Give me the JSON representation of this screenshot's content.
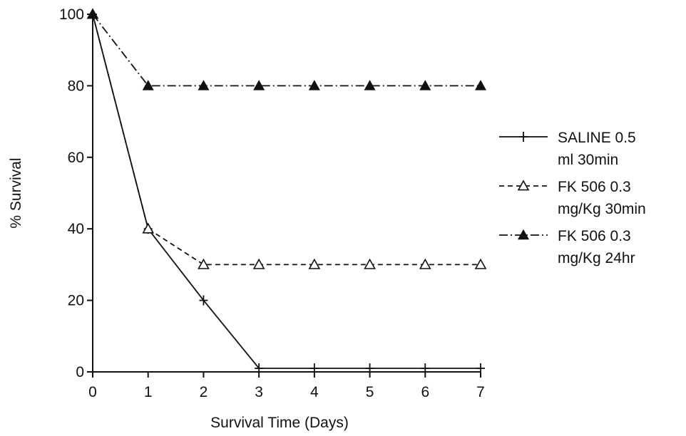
{
  "chart_data": {
    "type": "line",
    "title": "",
    "xlabel": "Survival Time (Days)",
    "ylabel": "% Survival",
    "xlim": [
      0,
      7
    ],
    "ylim": [
      0,
      100
    ],
    "x_ticks": [
      "0",
      "1",
      "2",
      "3",
      "4",
      "5",
      "6",
      "7"
    ],
    "y_ticks": [
      "0",
      "20",
      "40",
      "60",
      "80",
      "100"
    ],
    "grid": false,
    "legend_position": "right",
    "x": [
      0,
      1,
      2,
      3,
      4,
      5,
      6,
      7
    ],
    "series": [
      {
        "name": "SALINE 0.5 ml 30min",
        "legend_lines": [
          "SALINE 0.5",
          "ml 30min"
        ],
        "values": [
          100,
          40,
          20,
          1,
          1,
          1,
          1,
          1
        ],
        "line_style": "solid",
        "marker": "plus",
        "color": "#111111"
      },
      {
        "name": "FK 506 0.3 mg/Kg 30min",
        "legend_lines": [
          "FK 506 0.3",
          "mg/Kg 30min"
        ],
        "values": [
          100,
          40,
          30,
          30,
          30,
          30,
          30,
          30
        ],
        "line_style": "dashed",
        "marker": "open-triangle",
        "color": "#111111"
      },
      {
        "name": "FK 506 0.3 mg/Kg 24hr",
        "legend_lines": [
          "FK 506 0.3",
          "mg/Kg 24hr"
        ],
        "values": [
          100,
          80,
          80,
          80,
          80,
          80,
          80,
          80
        ],
        "line_style": "dash-dot",
        "marker": "filled-triangle",
        "color": "#111111"
      }
    ]
  }
}
